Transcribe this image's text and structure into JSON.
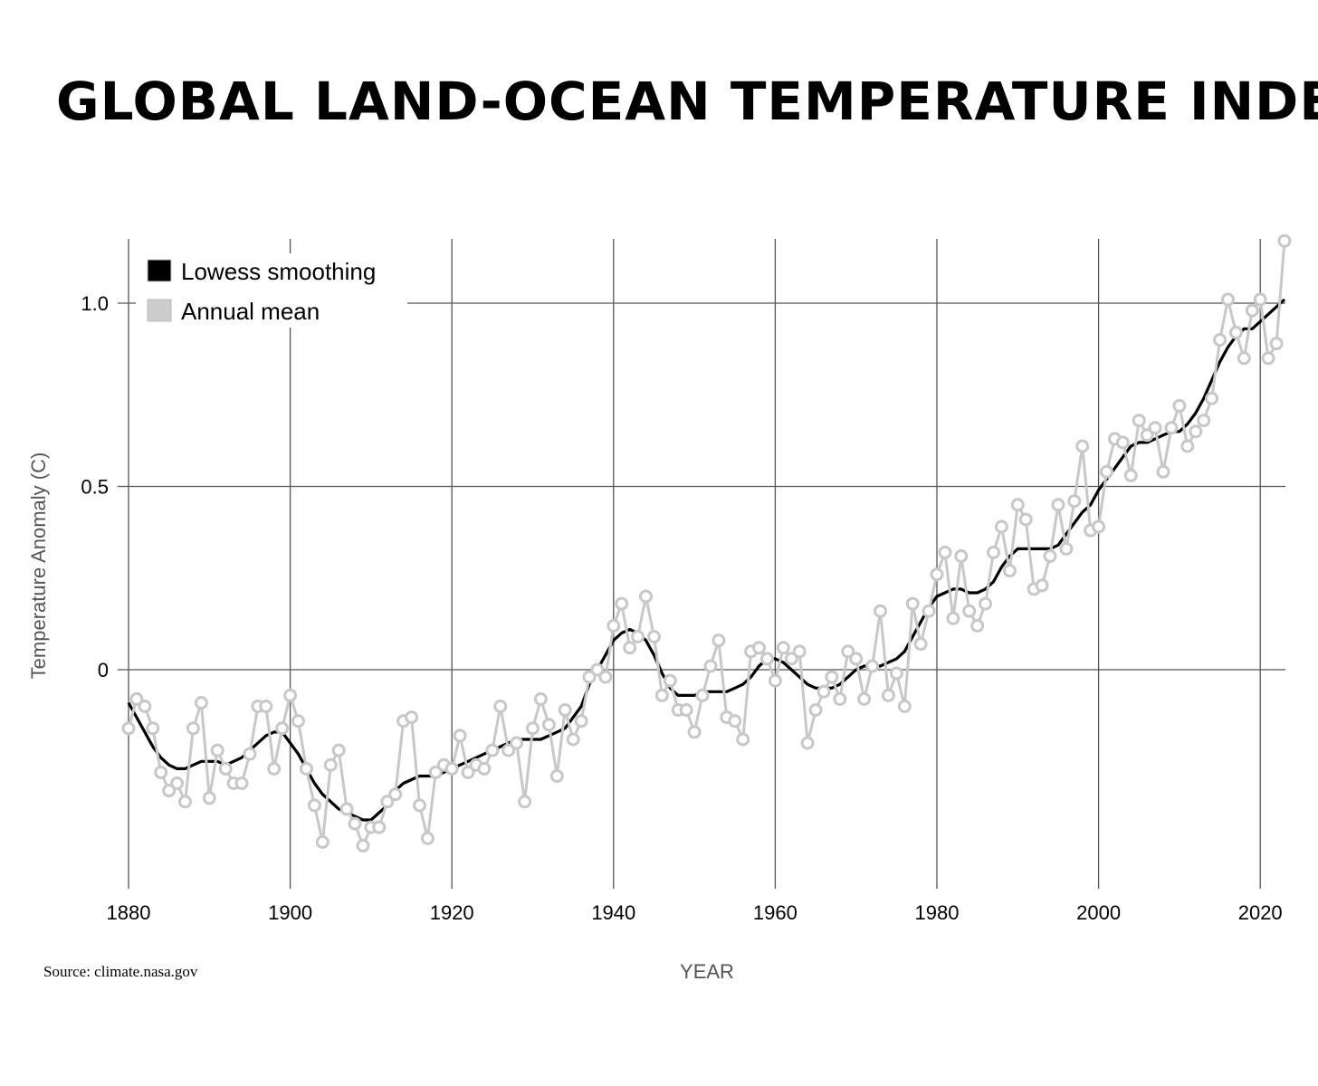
{
  "title": "GLOBAL LAND-OCEAN TEMPERATURE INDEX",
  "source": "Source: climate.nasa.gov",
  "chart_data": {
    "type": "line",
    "title": "GLOBAL LAND-OCEAN TEMPERATURE INDEX",
    "xlabel": "YEAR",
    "ylabel": "Temperature Anomaly (C)",
    "xlim": [
      1880,
      2023
    ],
    "ylim": [
      -0.6,
      1.18
    ],
    "xticks": [
      1880,
      1900,
      1920,
      1940,
      1960,
      1980,
      2000,
      2020
    ],
    "yticks": [
      0,
      0.5,
      1.0
    ],
    "ytick_labels": [
      "0",
      "0.5",
      "1.0"
    ],
    "grid": true,
    "legend": {
      "placement": "top-left",
      "entries": [
        {
          "label": "Lowess smoothing",
          "color": "#000000"
        },
        {
          "label": "Annual mean",
          "color": "#cccccc"
        }
      ]
    },
    "colors": {
      "smoothing": "#000000",
      "annual": "#c8c8c8",
      "grid": "#555555"
    },
    "series": [
      {
        "name": "Annual mean",
        "x": [
          1880,
          1881,
          1882,
          1883,
          1884,
          1885,
          1886,
          1887,
          1888,
          1889,
          1890,
          1891,
          1892,
          1893,
          1894,
          1895,
          1896,
          1897,
          1898,
          1899,
          1900,
          1901,
          1902,
          1903,
          1904,
          1905,
          1906,
          1907,
          1908,
          1909,
          1910,
          1911,
          1912,
          1913,
          1914,
          1915,
          1916,
          1917,
          1918,
          1919,
          1920,
          1921,
          1922,
          1923,
          1924,
          1925,
          1926,
          1927,
          1928,
          1929,
          1930,
          1931,
          1932,
          1933,
          1934,
          1935,
          1936,
          1937,
          1938,
          1939,
          1940,
          1941,
          1942,
          1943,
          1944,
          1945,
          1946,
          1947,
          1948,
          1949,
          1950,
          1951,
          1952,
          1953,
          1954,
          1955,
          1956,
          1957,
          1958,
          1959,
          1960,
          1961,
          1962,
          1963,
          1964,
          1965,
          1966,
          1967,
          1968,
          1969,
          1970,
          1971,
          1972,
          1973,
          1974,
          1975,
          1976,
          1977,
          1978,
          1979,
          1980,
          1981,
          1982,
          1983,
          1984,
          1985,
          1986,
          1987,
          1988,
          1989,
          1990,
          1991,
          1992,
          1993,
          1994,
          1995,
          1996,
          1997,
          1998,
          1999,
          2000,
          2001,
          2002,
          2003,
          2004,
          2005,
          2006,
          2007,
          2008,
          2009,
          2010,
          2011,
          2012,
          2013,
          2014,
          2015,
          2016,
          2017,
          2018,
          2019,
          2020,
          2021,
          2022,
          2023
        ],
        "y": [
          -0.16,
          -0.08,
          -0.1,
          -0.16,
          -0.28,
          -0.33,
          -0.31,
          -0.36,
          -0.16,
          -0.09,
          -0.35,
          -0.22,
          -0.27,
          -0.31,
          -0.31,
          -0.23,
          -0.1,
          -0.1,
          -0.27,
          -0.16,
          -0.07,
          -0.14,
          -0.27,
          -0.37,
          -0.47,
          -0.26,
          -0.22,
          -0.38,
          -0.42,
          -0.48,
          -0.43,
          -0.43,
          -0.36,
          -0.34,
          -0.14,
          -0.13,
          -0.37,
          -0.46,
          -0.28,
          -0.26,
          -0.27,
          -0.18,
          -0.28,
          -0.26,
          -0.27,
          -0.22,
          -0.1,
          -0.22,
          -0.2,
          -0.36,
          -0.16,
          -0.08,
          -0.15,
          -0.29,
          -0.11,
          -0.19,
          -0.14,
          -0.02,
          0.0,
          -0.02,
          0.12,
          0.18,
          0.06,
          0.09,
          0.2,
          0.09,
          -0.07,
          -0.03,
          -0.11,
          -0.11,
          -0.17,
          -0.07,
          0.01,
          0.08,
          -0.13,
          -0.14,
          -0.19,
          0.05,
          0.06,
          0.03,
          -0.03,
          0.06,
          0.03,
          0.05,
          -0.2,
          -0.11,
          -0.06,
          -0.02,
          -0.08,
          0.05,
          0.03,
          -0.08,
          0.01,
          0.16,
          -0.07,
          -0.01,
          -0.1,
          0.18,
          0.07,
          0.16,
          0.26,
          0.32,
          0.14,
          0.31,
          0.16,
          0.12,
          0.18,
          0.32,
          0.39,
          0.27,
          0.45,
          0.41,
          0.22,
          0.23,
          0.31,
          0.45,
          0.33,
          0.46,
          0.61,
          0.38,
          0.39,
          0.54,
          0.63,
          0.62,
          0.53,
          0.68,
          0.64,
          0.66,
          0.54,
          0.66,
          0.72,
          0.61,
          0.65,
          0.68,
          0.74,
          0.9,
          1.01,
          0.92,
          0.85,
          0.98,
          1.01,
          0.85,
          0.89,
          1.17
        ]
      },
      {
        "name": "Lowess smoothing",
        "x": [
          1880,
          1881,
          1882,
          1883,
          1884,
          1885,
          1886,
          1887,
          1888,
          1889,
          1890,
          1891,
          1892,
          1893,
          1894,
          1895,
          1896,
          1897,
          1898,
          1899,
          1900,
          1901,
          1902,
          1903,
          1904,
          1905,
          1906,
          1907,
          1908,
          1909,
          1910,
          1911,
          1912,
          1913,
          1914,
          1915,
          1916,
          1917,
          1918,
          1919,
          1920,
          1921,
          1922,
          1923,
          1924,
          1925,
          1926,
          1927,
          1928,
          1929,
          1930,
          1931,
          1932,
          1933,
          1934,
          1935,
          1936,
          1937,
          1938,
          1939,
          1940,
          1941,
          1942,
          1943,
          1944,
          1945,
          1946,
          1947,
          1948,
          1949,
          1950,
          1951,
          1952,
          1953,
          1954,
          1955,
          1956,
          1957,
          1958,
          1959,
          1960,
          1961,
          1962,
          1963,
          1964,
          1965,
          1966,
          1967,
          1968,
          1969,
          1970,
          1971,
          1972,
          1973,
          1974,
          1975,
          1976,
          1977,
          1978,
          1979,
          1980,
          1981,
          1982,
          1983,
          1984,
          1985,
          1986,
          1987,
          1988,
          1989,
          1990,
          1991,
          1992,
          1993,
          1994,
          1995,
          1996,
          1997,
          1998,
          1999,
          2000,
          2001,
          2002,
          2003,
          2004,
          2005,
          2006,
          2007,
          2008,
          2009,
          2010,
          2011,
          2012,
          2013,
          2014,
          2015,
          2016,
          2017,
          2018,
          2019,
          2020,
          2021,
          2022,
          2023
        ],
        "y": [
          -0.09,
          -0.13,
          -0.17,
          -0.21,
          -0.24,
          -0.26,
          -0.27,
          -0.27,
          -0.26,
          -0.25,
          -0.25,
          -0.25,
          -0.26,
          -0.25,
          -0.24,
          -0.22,
          -0.2,
          -0.18,
          -0.17,
          -0.17,
          -0.2,
          -0.23,
          -0.27,
          -0.31,
          -0.34,
          -0.36,
          -0.38,
          -0.39,
          -0.4,
          -0.41,
          -0.41,
          -0.39,
          -0.37,
          -0.33,
          -0.31,
          -0.3,
          -0.29,
          -0.29,
          -0.29,
          -0.28,
          -0.27,
          -0.26,
          -0.25,
          -0.24,
          -0.23,
          -0.22,
          -0.21,
          -0.2,
          -0.19,
          -0.19,
          -0.19,
          -0.19,
          -0.18,
          -0.17,
          -0.16,
          -0.13,
          -0.1,
          -0.04,
          0.0,
          0.04,
          0.08,
          0.1,
          0.11,
          0.1,
          0.08,
          0.04,
          -0.01,
          -0.05,
          -0.07,
          -0.07,
          -0.07,
          -0.06,
          -0.06,
          -0.06,
          -0.06,
          -0.05,
          -0.04,
          -0.02,
          0.01,
          0.03,
          0.03,
          0.02,
          0.0,
          -0.02,
          -0.04,
          -0.05,
          -0.05,
          -0.05,
          -0.04,
          -0.02,
          0.0,
          0.01,
          0.01,
          0.01,
          0.02,
          0.03,
          0.05,
          0.09,
          0.13,
          0.17,
          0.2,
          0.21,
          0.22,
          0.22,
          0.21,
          0.21,
          0.22,
          0.24,
          0.28,
          0.31,
          0.33,
          0.33,
          0.33,
          0.33,
          0.33,
          0.34,
          0.37,
          0.4,
          0.43,
          0.45,
          0.49,
          0.52,
          0.55,
          0.58,
          0.61,
          0.62,
          0.62,
          0.63,
          0.64,
          0.65,
          0.65,
          0.67,
          0.7,
          0.74,
          0.79,
          0.84,
          0.88,
          0.91,
          0.93,
          0.93,
          0.95,
          0.97,
          0.99,
          1.01
        ]
      }
    ]
  }
}
